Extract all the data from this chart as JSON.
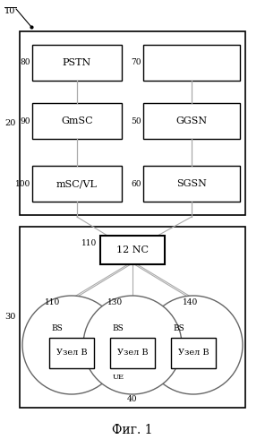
{
  "fig_width": 2.96,
  "fig_height": 5.0,
  "dpi": 100,
  "bg_color": "#ffffff",
  "box_color": "#ffffff",
  "box_edge": "#000000",
  "line_color": "#aaaaaa",
  "title": "Фиг. 1",
  "label_10": "10",
  "label_20": "20",
  "label_30": "30",
  "label_40": "40",
  "label_50": "50",
  "label_60": "60",
  "label_70": "70",
  "label_80": "80",
  "label_90": "90",
  "label_100": "100",
  "label_110a": "110",
  "label_110b": "110",
  "label_130": "130",
  "label_140": "140",
  "node_pstn": "PSTN",
  "node_gmsc": "GmSC",
  "node_mscvl": "mSC/VL",
  "node_ggsn": "GGSN",
  "node_sgsn": "SGSN",
  "node_12nc": "12 NC",
  "node_bs": "BS",
  "node_uzel": "Узел В",
  "node_ue": "UE"
}
